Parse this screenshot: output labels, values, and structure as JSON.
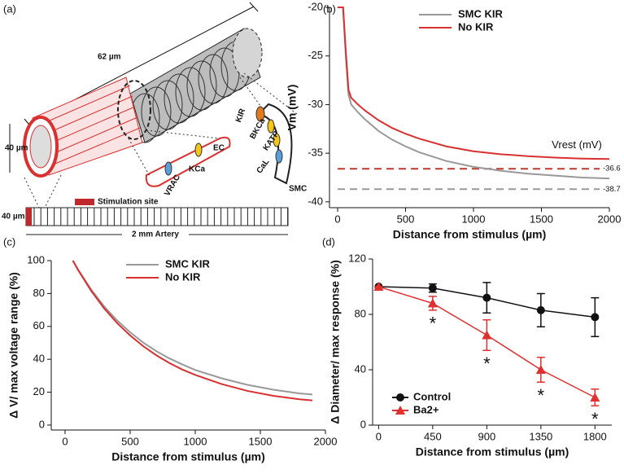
{
  "diagram": {
    "label": "(a)",
    "length": "62 µm",
    "diameter": "40 µm",
    "strip_height": "40 µm",
    "stimulation": "Stimulation site",
    "artery": "2 mm Artery",
    "ec": "EC",
    "vrac": "VRAC",
    "kca": "KCa",
    "kir": "KIR",
    "bkca": "BKCa",
    "katp": "KATP",
    "cal": "CaL",
    "smc": "SMC"
  },
  "chart_data": [
    {
      "type": "line",
      "label": "(b)",
      "xlabel": "Distance from stimulus (µm)",
      "ylabel": "Vm (mV)",
      "xlim": [
        -60,
        2000
      ],
      "ylim": [
        -40.6,
        -20
      ],
      "xticks": [
        0,
        500,
        1000,
        1500,
        2000
      ],
      "yticks": [
        -40,
        -35,
        -30,
        -25,
        -20
      ],
      "x": [
        0,
        40,
        60,
        80,
        100,
        150,
        200,
        300,
        400,
        500,
        600,
        800,
        1000,
        1200,
        1400,
        1600,
        1800,
        2000
      ],
      "series": [
        {
          "name": "SMC KIR",
          "color": "#999999",
          "values": [
            -20,
            -20,
            -25,
            -29,
            -30,
            -30.8,
            -31.5,
            -32.7,
            -33.6,
            -34.3,
            -34.9,
            -35.8,
            -36.4,
            -36.8,
            -37.1,
            -37.3,
            -37.5,
            -37.6
          ]
        },
        {
          "name": "No KIR",
          "color": "#d93030",
          "values": [
            -20,
            -20,
            -24.5,
            -28.5,
            -29.3,
            -30,
            -30.6,
            -31.6,
            -32.4,
            -33,
            -33.5,
            -34.3,
            -34.8,
            -35.1,
            -35.3,
            -35.45,
            -35.55,
            -35.6
          ]
        }
      ],
      "hlines": [
        {
          "value": -36.6,
          "color": "#c0392b"
        },
        {
          "value": -38.7,
          "color": "#999999"
        }
      ],
      "annotation": "Vrest (mV)",
      "legend": "upper center"
    },
    {
      "type": "line",
      "label": "(c)",
      "xlabel": "Distance from stimulus (µm)",
      "ylabel": "Δ V/ max voltage range (%)",
      "xlim": [
        -106,
        2000
      ],
      "ylim": [
        -3,
        100
      ],
      "xticks": [
        0,
        500,
        1000,
        1500,
        2000
      ],
      "yticks": [
        0,
        20,
        40,
        60,
        80,
        100
      ],
      "x": [
        60,
        100,
        200,
        300,
        400,
        500,
        600,
        700,
        800,
        900,
        1000,
        1200,
        1400,
        1600,
        1800,
        1900
      ],
      "series": [
        {
          "name": "SMC KIR",
          "color": "#999999",
          "values": [
            100,
            94.6,
            82.5,
            72.2,
            63.6,
            56.4,
            50.2,
            45,
            40.6,
            36.9,
            33.5,
            28.5,
            24.5,
            21.5,
            19.3,
            18.6
          ]
        },
        {
          "name": "No KIR",
          "color": "#d93030",
          "values": [
            100,
            94.3,
            81.7,
            71,
            62,
            54.5,
            48,
            42.5,
            37.8,
            33.8,
            30.5,
            25,
            20.8,
            17.8,
            15.7,
            15
          ]
        }
      ],
      "legend": "upper right"
    },
    {
      "type": "errorbar",
      "label": "(d)",
      "xlabel": "Distance from stimulus (µm)",
      "ylabel": "Δ Diameter/ max response (%)",
      "xlim": [
        -50,
        1940
      ],
      "ylim": [
        0,
        120
      ],
      "xticks": [
        0,
        450,
        900,
        1350,
        1800
      ],
      "yticks": [
        0,
        40,
        80,
        120
      ],
      "x": [
        0,
        450,
        900,
        1350,
        1800
      ],
      "series": [
        {
          "name": "Control",
          "color": "#111111",
          "marker": "circle",
          "values": [
            100,
            99,
            92,
            83,
            78
          ],
          "errors": [
            0,
            3,
            11,
            12,
            14
          ]
        },
        {
          "name": "Ba2+",
          "color": "#e03030",
          "marker": "triangle",
          "values": [
            100,
            88,
            65,
            40,
            20
          ],
          "errors": [
            0,
            5,
            11,
            9,
            6
          ]
        }
      ],
      "annotations": [
        {
          "x": 450,
          "text": "*"
        },
        {
          "x": 900,
          "text": "*"
        },
        {
          "x": 1350,
          "text": "*"
        },
        {
          "x": 1800,
          "text": "*"
        }
      ],
      "legend": "lower left"
    }
  ]
}
